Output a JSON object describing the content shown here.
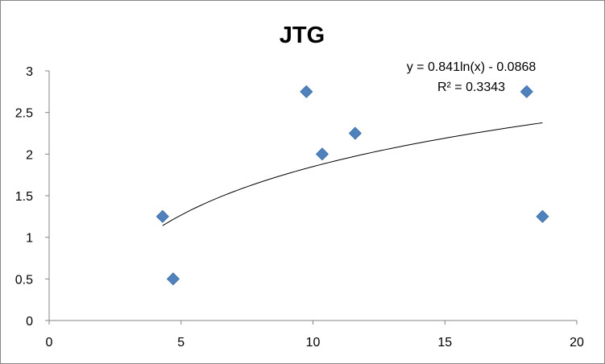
{
  "chart_data": {
    "type": "scatter",
    "title": "JTG",
    "xlabel": "",
    "ylabel": "",
    "xlim": [
      0,
      20
    ],
    "ylim": [
      0,
      3
    ],
    "x_ticks": [
      0,
      5,
      10,
      15,
      20
    ],
    "y_ticks": [
      0,
      0.5,
      1,
      1.5,
      2,
      2.5,
      3
    ],
    "x_tick_labels": [
      "0",
      "5",
      "10",
      "15",
      "20"
    ],
    "y_tick_labels": [
      "0",
      "0.5",
      "1",
      "1.5",
      "2",
      "2.5",
      "3"
    ],
    "grid": false,
    "legend": "none",
    "marker": "diamond",
    "marker_color": "#4F81BD",
    "series": [
      {
        "x": [
          4.3,
          4.7,
          9.75,
          10.35,
          11.6,
          18.1,
          18.7
        ],
        "y": [
          1.25,
          0.5,
          2.75,
          2.0,
          2.25,
          2.75,
          1.25
        ]
      }
    ],
    "trendline": {
      "type": "logarithmic",
      "a": 0.841,
      "b": -0.0868,
      "x_range": [
        4.3,
        18.7
      ],
      "color": "#000000",
      "equation": "y = 0.841ln(x) - 0.0868",
      "r_squared": "R² = 0.3343"
    }
  }
}
